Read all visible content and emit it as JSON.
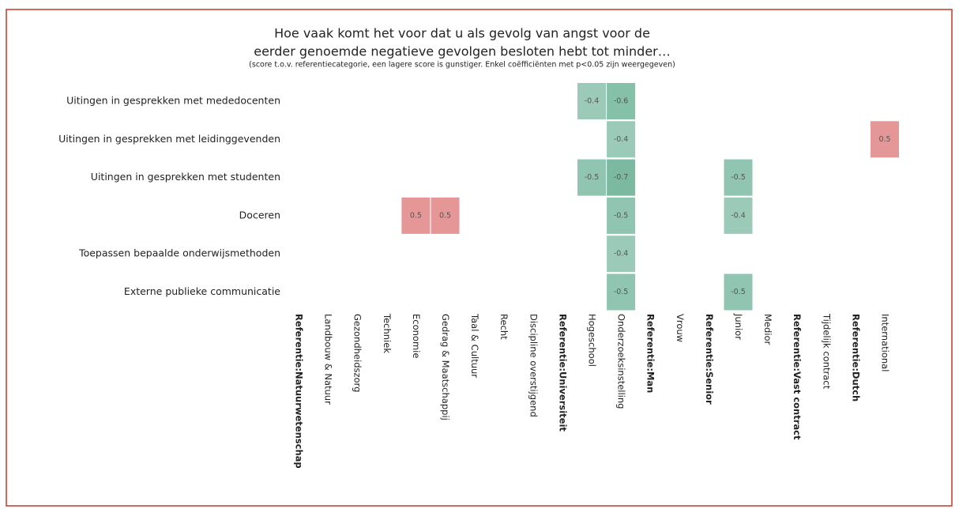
{
  "chart_data": {
    "type": "heatmap",
    "title": [
      "Hoe vaak komt het voor dat u als gevolg van angst voor de",
      "eerder genoemde negatieve gevolgen besloten hebt tot minder…"
    ],
    "subtitle": "(score t.o.v. referentiecategorie, een lagere score is gunstiger. Enkel coëfficiënten met p<0.05 zijn weergegeven)",
    "rows": [
      "Uitingen in gesprekken met mededocenten",
      "Uitingen in gesprekken met leidinggevenden",
      "Uitingen in gesprekken met studenten",
      "Doceren",
      "Toepassen bepaalde onderwijsmethoden",
      "Externe publieke communicatie"
    ],
    "columns": [
      "Referentie:Natuurwetenschap",
      "Landbouw & Natuur",
      "Gezondheidszorg",
      "Techniek",
      "Economie",
      "Gedrag & Maatschappij",
      "Taal & Cultuur",
      "Recht",
      "Discipline overstijgend",
      "Referentie:Universiteit",
      "Hogeschool",
      "Onderzoeksinstelling",
      "Referentie:Man",
      "Vrouw",
      "Referentie:Senior",
      "Junior",
      "Medior",
      "Referentie:Vast contract",
      "Tijdelijk contract",
      "Referentie:Dutch",
      "International"
    ],
    "reference_columns": [
      true,
      false,
      false,
      false,
      false,
      false,
      false,
      false,
      false,
      true,
      false,
      false,
      true,
      false,
      true,
      false,
      false,
      true,
      false,
      true,
      false
    ],
    "values": [
      [
        null,
        null,
        null,
        null,
        null,
        null,
        null,
        null,
        null,
        null,
        -0.4,
        -0.6,
        null,
        null,
        null,
        null,
        null,
        null,
        null,
        null,
        null
      ],
      [
        null,
        null,
        null,
        null,
        null,
        null,
        null,
        null,
        null,
        null,
        null,
        -0.4,
        null,
        null,
        null,
        null,
        null,
        null,
        null,
        null,
        0.5
      ],
      [
        null,
        null,
        null,
        null,
        null,
        null,
        null,
        null,
        null,
        null,
        -0.5,
        -0.7,
        null,
        null,
        null,
        -0.5,
        null,
        null,
        null,
        null,
        null
      ],
      [
        null,
        null,
        null,
        null,
        0.5,
        0.5,
        null,
        null,
        null,
        null,
        null,
        -0.5,
        null,
        null,
        null,
        -0.4,
        null,
        null,
        null,
        null,
        null
      ],
      [
        null,
        null,
        null,
        null,
        null,
        null,
        null,
        null,
        null,
        null,
        null,
        -0.4,
        null,
        null,
        null,
        null,
        null,
        null,
        null,
        null,
        null
      ],
      [
        null,
        null,
        null,
        null,
        null,
        null,
        null,
        null,
        null,
        null,
        null,
        -0.5,
        null,
        null,
        null,
        -0.5,
        null,
        null,
        null,
        null,
        null
      ]
    ],
    "negative_color": "#5aa98a",
    "positive_color": "#e08585",
    "border_color": "#c0392b"
  }
}
